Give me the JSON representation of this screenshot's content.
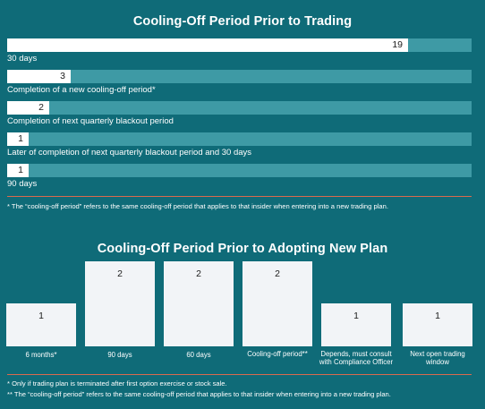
{
  "chart_data": [
    {
      "type": "bar",
      "orientation": "horizontal",
      "title": "Cooling-Off Period Prior to Trading",
      "categories": [
        "30 days",
        "Completion of a new cooling-off period*",
        "Completion of next quarterly blackout period",
        "Later of completion of next quarterly blackout period and 30 days",
        "90 days"
      ],
      "values": [
        19,
        3,
        2,
        1,
        1
      ],
      "xlim": [
        0,
        22
      ],
      "footnote": "* The “cooling-off period” refers to the same cooling-off period that applies to that insider when entering into a new trading plan."
    },
    {
      "type": "bar",
      "orientation": "vertical",
      "title": "Cooling-Off Period Prior to Adopting New Plan",
      "categories": [
        "6 months*",
        "90 days",
        "60 days",
        "Cooling-off period**",
        "Depends, must consult with Compliance Officer",
        "Next open trading window"
      ],
      "values": [
        1,
        2,
        2,
        2,
        1,
        1
      ],
      "ylim": [
        0,
        2
      ],
      "footnotes": [
        "*  Only if trading plan is terminated after first option exercise or stock sale.",
        "** The “cooling-off period” refers to the same cooling-off period that applies to that insider when entering into a new trading plan."
      ]
    }
  ],
  "colors": {
    "background": "#0f6b78",
    "bar": "#ffffff",
    "track": "#3e9aa5",
    "rule": "#d96a4e"
  }
}
